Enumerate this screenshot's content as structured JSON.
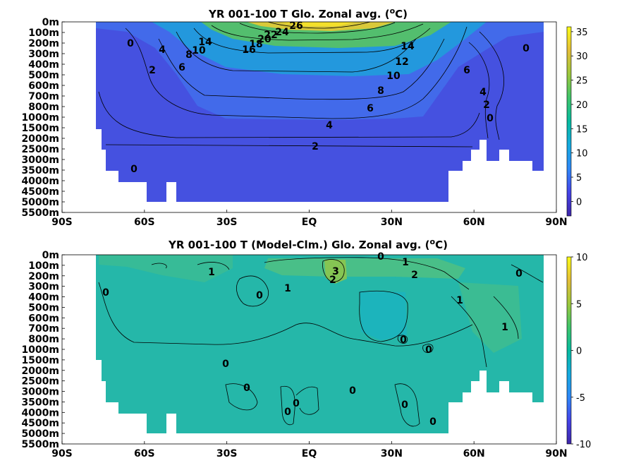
{
  "chart_data": [
    {
      "type": "heatmap",
      "title": "YR 001-100 T Glo. Zonal avg. (°C)",
      "x_tick_labels": [
        "90S",
        "60S",
        "30S",
        "EQ",
        "30N",
        "60N",
        "90N"
      ],
      "x_ticks": [
        -90,
        -60,
        -30,
        0,
        30,
        60,
        90
      ],
      "xlim": [
        -90,
        90
      ],
      "y_tick_labels": [
        "0m",
        "100m",
        "200m",
        "300m",
        "400m",
        "500m",
        "600m",
        "700m",
        "800m",
        "1000m",
        "1500m",
        "2000m",
        "2500m",
        "3000m",
        "3500m",
        "4000m",
        "4500m",
        "5000m",
        "5500m"
      ],
      "colorbar": {
        "ticks": [
          0,
          5,
          10,
          15,
          20,
          25,
          30,
          35
        ],
        "range": [
          -3,
          36
        ]
      },
      "contour_labels": [
        "0",
        "4",
        "2",
        "6",
        "8",
        "10",
        "14",
        "16",
        "18",
        "20",
        "22",
        "24",
        "26",
        "14",
        "12",
        "10",
        "8",
        "6",
        "4",
        "2",
        "6",
        "4",
        "2",
        "0",
        "0",
        "0"
      ],
      "lat": [
        -90,
        -80,
        -70,
        -60,
        -50,
        -40,
        -30,
        -20,
        -10,
        0,
        10,
        20,
        30,
        40,
        50,
        60,
        70,
        80,
        90
      ],
      "depth_levels": [
        "0m",
        "200m",
        "500m",
        "800m",
        "1500m",
        "3000m",
        "5000m"
      ],
      "values": [
        [
          null,
          -1,
          1,
          4,
          8,
          14,
          19,
          23,
          26,
          27,
          27,
          25,
          21,
          16,
          10,
          6,
          2,
          0,
          null
        ],
        [
          null,
          -1,
          1,
          3,
          6,
          10,
          13,
          15,
          16,
          17,
          17,
          15,
          13,
          11,
          8,
          5,
          2,
          0,
          null
        ],
        [
          null,
          -1,
          1,
          2,
          4,
          6,
          8,
          9,
          9,
          9,
          9,
          9,
          9,
          8,
          6,
          4,
          2,
          0,
          null
        ],
        [
          null,
          -1,
          0.5,
          2,
          3,
          4,
          5,
          5,
          5,
          5,
          5,
          5,
          6,
          5,
          4,
          3,
          1,
          0,
          null
        ],
        [
          null,
          -1,
          0.5,
          1,
          2,
          2.5,
          3,
          3.5,
          3.5,
          3.5,
          3.5,
          3.5,
          4,
          3.5,
          3,
          2,
          1,
          0,
          null
        ],
        [
          null,
          -1,
          0,
          0.5,
          1,
          1.5,
          1.8,
          2,
          2,
          2,
          2,
          2,
          2.2,
          2,
          1.5,
          1,
          0.5,
          null,
          null
        ],
        [
          null,
          null,
          0,
          0.5,
          1,
          1.2,
          1.5,
          1.5,
          1.5,
          1.5,
          1.5,
          1.5,
          1.5,
          1.5,
          1,
          null,
          null,
          null,
          null
        ]
      ]
    },
    {
      "type": "heatmap",
      "title": "YR 001-100 T (Model-Clm.) Glo. Zonal avg. (°C)",
      "x_tick_labels": [
        "90S",
        "60S",
        "30S",
        "EQ",
        "30N",
        "60N",
        "90N"
      ],
      "x_ticks": [
        -90,
        -60,
        -30,
        0,
        30,
        60,
        90
      ],
      "xlim": [
        -90,
        90
      ],
      "y_tick_labels": [
        "0m",
        "100m",
        "200m",
        "300m",
        "400m",
        "500m",
        "600m",
        "700m",
        "800m",
        "1000m",
        "1500m",
        "2000m",
        "2500m",
        "3000m",
        "3500m",
        "4000m",
        "4500m",
        "5000m",
        "5500m"
      ],
      "colorbar": {
        "ticks": [
          -10,
          -5,
          0,
          5,
          10
        ],
        "range": [
          -10,
          10
        ]
      },
      "contour_labels": [
        "0",
        "1",
        "0",
        "1",
        "3",
        "2",
        "0",
        "1",
        "2",
        "0",
        "1",
        "1",
        "0",
        "0",
        "0",
        "0",
        "0",
        "0",
        "0"
      ],
      "lat": [
        -90,
        -80,
        -70,
        -60,
        -50,
        -40,
        -30,
        -20,
        -10,
        0,
        10,
        20,
        30,
        40,
        50,
        60,
        70,
        80,
        90
      ],
      "depth_levels": [
        "0m",
        "200m",
        "500m",
        "800m",
        "1500m",
        "3000m",
        "5000m"
      ],
      "values": [
        [
          null,
          0.5,
          0.8,
          1,
          0.5,
          1,
          1.2,
          1.5,
          2,
          3,
          2.5,
          1.5,
          1.5,
          1.2,
          1,
          0.5,
          0.5,
          0.2,
          null
        ],
        [
          null,
          0.3,
          0.5,
          0.8,
          0.3,
          0.2,
          1,
          1.2,
          1.5,
          2.5,
          2,
          1.5,
          1.2,
          1,
          0.8,
          1,
          1,
          0.3,
          null
        ],
        [
          null,
          0,
          0.3,
          0.5,
          0.2,
          0.2,
          0.5,
          0.5,
          0.2,
          0.2,
          0,
          -0.5,
          0.2,
          0.5,
          0.8,
          1,
          1.5,
          0.5,
          null
        ],
        [
          null,
          0,
          0.2,
          0.3,
          0.3,
          0.2,
          0.3,
          0.3,
          0.2,
          0,
          -0.3,
          -0.3,
          0,
          0.3,
          0.5,
          0.8,
          1,
          0.3,
          null
        ],
        [
          null,
          0,
          0.3,
          0.5,
          0.5,
          0.2,
          0.2,
          0.3,
          0.2,
          0.2,
          0.1,
          0,
          0.1,
          0.2,
          0.2,
          0.3,
          0.3,
          0.2,
          null
        ],
        [
          null,
          0,
          0.2,
          0.3,
          0.3,
          0.1,
          0,
          0.2,
          -0.1,
          0.1,
          0,
          -0.2,
          0.2,
          0,
          0,
          0.2,
          0.2,
          null,
          null
        ],
        [
          null,
          null,
          0,
          0.1,
          0.2,
          0,
          0,
          0.1,
          0,
          -0.1,
          0,
          0,
          0,
          0,
          0,
          null,
          null,
          null,
          null
        ]
      ]
    }
  ]
}
